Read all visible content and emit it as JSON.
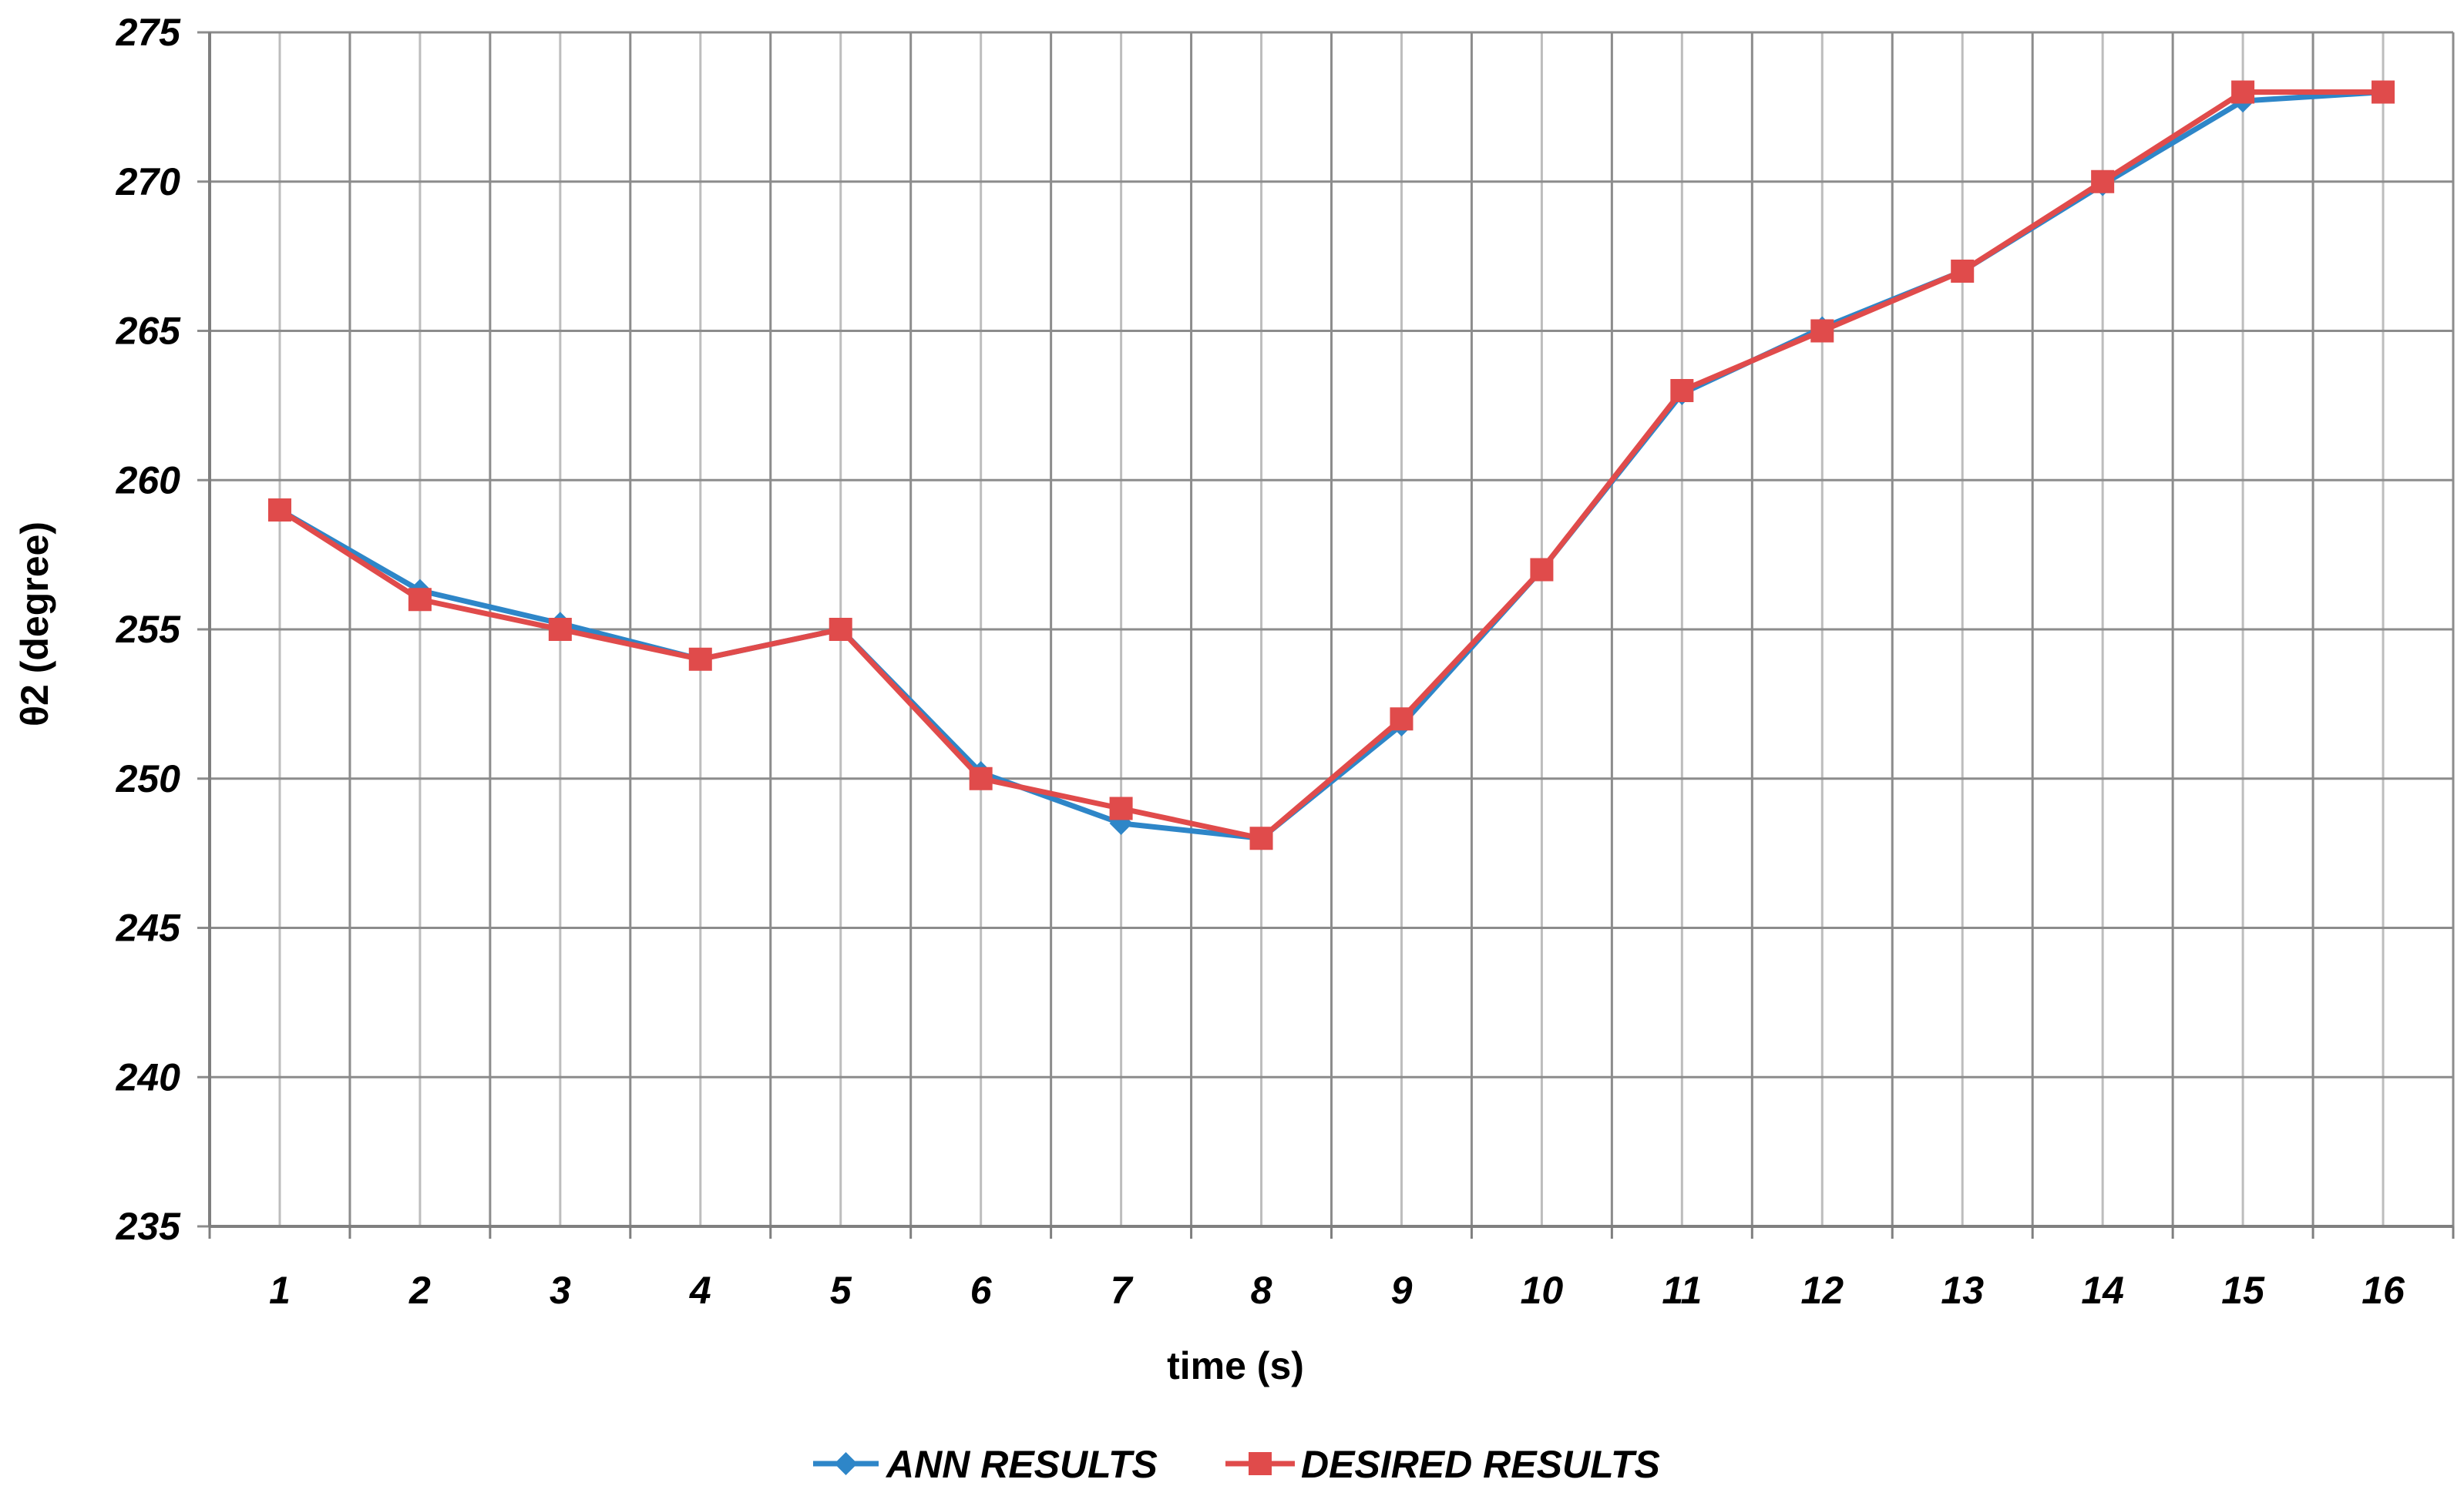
{
  "chart_data": {
    "type": "line",
    "title": "",
    "xlabel": "time (s)",
    "ylabel": "θ2 (degree)",
    "categories": [
      "1",
      "2",
      "3",
      "4",
      "5",
      "6",
      "7",
      "8",
      "9",
      "10",
      "11",
      "12",
      "13",
      "14",
      "15",
      "16"
    ],
    "ylim": [
      235,
      275
    ],
    "yticks": [
      "235",
      "240",
      "245",
      "250",
      "255",
      "260",
      "265",
      "270",
      "275"
    ],
    "grid": true,
    "legend_position": "bottom",
    "series": [
      {
        "name": "ANN RESULTS",
        "color": "#2E86C8",
        "marker": "diamond",
        "values": [
          259,
          256.3,
          255.2,
          254,
          255,
          250.2,
          248.5,
          248,
          251.8,
          257,
          262.9,
          265.1,
          267,
          269.9,
          272.7,
          273
        ]
      },
      {
        "name": "DESIRED RESULTS",
        "color": "#E04B4B",
        "marker": "square",
        "values": [
          259,
          256,
          255,
          254,
          255,
          250,
          249,
          248,
          252,
          257,
          263,
          265,
          267,
          270,
          273,
          273
        ]
      }
    ]
  }
}
